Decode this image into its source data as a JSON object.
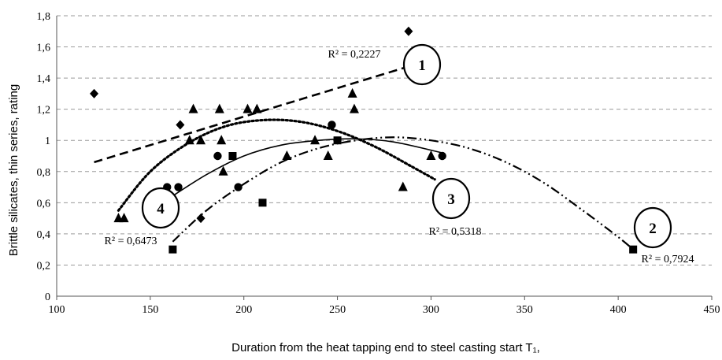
{
  "chart_data": {
    "type": "scatter",
    "xlabel": "Duration from the heat tapping end to steel casting start T₁,",
    "ylabel": "Brittle silicates, thin series, rating",
    "xlim": [
      100,
      450
    ],
    "ylim": [
      0,
      1.8
    ],
    "x_ticks": [
      "100",
      "150",
      "200",
      "250",
      "300",
      "350",
      "400",
      "450"
    ],
    "y_ticks": [
      "0",
      "0,2",
      "0,4",
      "0,6",
      "0,8",
      "1",
      "1,2",
      "1,4",
      "1,6",
      "1,8"
    ],
    "grid": "horizontal dashed",
    "legend": "none",
    "series": [
      {
        "marker": "diamond",
        "label": "1",
        "r2": "R² = 0,2227",
        "trend": "linear",
        "trend_style": "dashed",
        "points": [
          [
            120,
            1.3
          ],
          [
            166,
            1.1
          ],
          [
            177,
            0.5
          ],
          [
            288,
            1.7
          ]
        ],
        "trend_points": [
          [
            120,
            0.86
          ],
          [
            295,
            1.5
          ]
        ]
      },
      {
        "marker": "square",
        "label": "2",
        "r2": "R² = 0,7924",
        "trend": "polynomial",
        "trend_style": "dash-dot-dot",
        "points": [
          [
            162,
            0.3
          ],
          [
            194,
            0.9
          ],
          [
            210,
            0.6
          ],
          [
            250,
            1.0
          ],
          [
            408,
            0.3
          ]
        ],
        "trend_points": [
          [
            162,
            0.35
          ],
          [
            180,
            0.55
          ],
          [
            200,
            0.72
          ],
          [
            220,
            0.86
          ],
          [
            240,
            0.95
          ],
          [
            260,
            1.0
          ],
          [
            280,
            1.02
          ],
          [
            300,
            1.0
          ],
          [
            320,
            0.95
          ],
          [
            340,
            0.86
          ],
          [
            360,
            0.73
          ],
          [
            380,
            0.56
          ],
          [
            400,
            0.38
          ],
          [
            408,
            0.3
          ]
        ]
      },
      {
        "marker": "circle",
        "label": "3",
        "r2": "R² = 0,5318",
        "trend": "polynomial",
        "trend_style": "solid",
        "points": [
          [
            159,
            0.7
          ],
          [
            165,
            0.7
          ],
          [
            186,
            0.9
          ],
          [
            197,
            0.7
          ],
          [
            247,
            1.1
          ],
          [
            306,
            0.9
          ]
        ],
        "trend_points": [
          [
            159,
            0.62
          ],
          [
            180,
            0.78
          ],
          [
            200,
            0.9
          ],
          [
            220,
            0.97
          ],
          [
            240,
            1.0
          ],
          [
            260,
            1.01
          ],
          [
            280,
            0.99
          ],
          [
            306,
            0.92
          ]
        ]
      },
      {
        "marker": "triangle",
        "label": "4",
        "r2": "R² = 0,6473",
        "trend": "polynomial",
        "trend_style": "dotted",
        "points": [
          [
            133,
            0.5
          ],
          [
            136,
            0.5
          ],
          [
            171,
            1.0
          ],
          [
            173,
            1.2
          ],
          [
            177,
            1.0
          ],
          [
            187,
            1.2
          ],
          [
            188,
            1.0
          ],
          [
            189,
            0.8
          ],
          [
            202,
            1.2
          ],
          [
            207,
            1.2
          ],
          [
            223,
            0.9
          ],
          [
            238,
            1.0
          ],
          [
            245,
            0.9
          ],
          [
            258,
            1.3
          ],
          [
            259,
            1.2
          ],
          [
            285,
            0.7
          ],
          [
            300,
            0.9
          ]
        ],
        "trend_points": [
          [
            133,
            0.55
          ],
          [
            150,
            0.8
          ],
          [
            170,
            0.98
          ],
          [
            190,
            1.09
          ],
          [
            210,
            1.13
          ],
          [
            230,
            1.12
          ],
          [
            250,
            1.06
          ],
          [
            270,
            0.96
          ],
          [
            290,
            0.83
          ],
          [
            302,
            0.75
          ]
        ]
      }
    ]
  }
}
